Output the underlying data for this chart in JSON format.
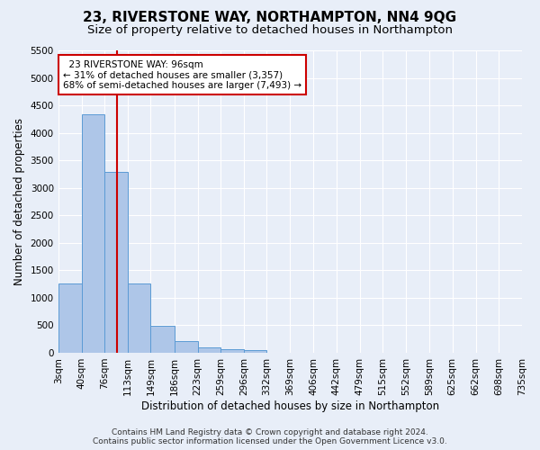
{
  "title": "23, RIVERSTONE WAY, NORTHAMPTON, NN4 9QG",
  "subtitle": "Size of property relative to detached houses in Northampton",
  "xlabel": "Distribution of detached houses by size in Northampton",
  "ylabel": "Number of detached properties",
  "footer_line1": "Contains HM Land Registry data © Crown copyright and database right 2024.",
  "footer_line2": "Contains public sector information licensed under the Open Government Licence v3.0.",
  "annotation_line1": "  23 RIVERSTONE WAY: 96sqm",
  "annotation_line2": "← 31% of detached houses are smaller (3,357)",
  "annotation_line3": "68% of semi-detached houses are larger (7,493) →",
  "bar_edges": [
    3,
    40,
    76,
    113,
    149,
    186,
    223,
    259,
    296,
    332,
    369,
    406,
    442,
    479,
    515,
    552,
    589,
    625,
    662,
    698,
    735
  ],
  "bar_heights": [
    1260,
    4350,
    3300,
    1260,
    490,
    220,
    90,
    60,
    55,
    0,
    0,
    0,
    0,
    0,
    0,
    0,
    0,
    0,
    0,
    0
  ],
  "bar_color": "#aec6e8",
  "bar_edge_color": "#5b9bd5",
  "reference_line_x": 96,
  "reference_line_color": "#cc0000",
  "ylim": [
    0,
    5500
  ],
  "yticks": [
    0,
    500,
    1000,
    1500,
    2000,
    2500,
    3000,
    3500,
    4000,
    4500,
    5000,
    5500
  ],
  "background_color": "#e8eef8",
  "annotation_box_color": "#ffffff",
  "annotation_box_edge_color": "#cc0000",
  "grid_color": "#ffffff",
  "title_fontsize": 11,
  "subtitle_fontsize": 9.5,
  "axis_label_fontsize": 8.5,
  "tick_fontsize": 7.5,
  "annotation_fontsize": 7.5,
  "footer_fontsize": 6.5
}
